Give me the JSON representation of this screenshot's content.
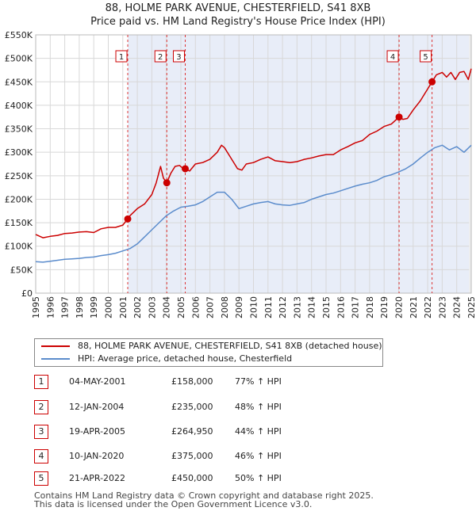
{
  "title_line1": "88, HOLME PARK AVENUE, CHESTERFIELD, S41 8XB",
  "title_line2": "Price paid vs. HM Land Registry's House Price Index (HPI)",
  "chart_data": {
    "type": "line",
    "xlim": [
      1995,
      2025
    ],
    "ylim": [
      0,
      550000
    ],
    "y_ticks": [
      0,
      50000,
      100000,
      150000,
      200000,
      250000,
      300000,
      350000,
      400000,
      450000,
      500000,
      550000
    ],
    "y_tick_labels": [
      "£0",
      "£50K",
      "£100K",
      "£150K",
      "£200K",
      "£250K",
      "£300K",
      "£350K",
      "£400K",
      "£450K",
      "£500K",
      "£550K"
    ],
    "x_ticks": [
      1995,
      1996,
      1997,
      1998,
      1999,
      2000,
      2001,
      2002,
      2003,
      2004,
      2005,
      2006,
      2007,
      2008,
      2009,
      2010,
      2011,
      2012,
      2013,
      2014,
      2015,
      2016,
      2017,
      2018,
      2019,
      2020,
      2021,
      2022,
      2023,
      2024,
      2025
    ],
    "grid": true,
    "series": [
      {
        "name": "88, HOLME PARK AVENUE, CHESTERFIELD, S41 8XB (detached house)",
        "color": "#cc0000",
        "x": [
          1995.0,
          1995.5,
          1996.0,
          1996.5,
          1997.0,
          1997.5,
          1998.0,
          1998.5,
          1999.0,
          1999.5,
          2000.0,
          2000.5,
          2001.0,
          2001.34,
          2001.5,
          2002.0,
          2002.5,
          2003.0,
          2003.3,
          2003.6,
          2003.8,
          2004.03,
          2004.3,
          2004.6,
          2004.9,
          2005.1,
          2005.3,
          2005.6,
          2006.0,
          2006.5,
          2007.0,
          2007.5,
          2007.8,
          2008.0,
          2008.3,
          2008.6,
          2008.9,
          2009.2,
          2009.5,
          2010.0,
          2010.5,
          2011.0,
          2011.5,
          2012.0,
          2012.5,
          2013.0,
          2013.5,
          2014.0,
          2014.5,
          2015.0,
          2015.5,
          2016.0,
          2016.5,
          2017.0,
          2017.5,
          2018.0,
          2018.5,
          2019.0,
          2019.5,
          2020.03,
          2020.3,
          2020.6,
          2021.0,
          2021.5,
          2021.9,
          2022.3,
          2022.6,
          2023.0,
          2023.3,
          2023.6,
          2023.9,
          2024.2,
          2024.5,
          2024.8,
          2025.0
        ],
        "values": [
          125000,
          118000,
          121000,
          123000,
          127000,
          128000,
          130000,
          131000,
          129000,
          137000,
          140000,
          140000,
          145000,
          158000,
          165000,
          180000,
          190000,
          210000,
          235000,
          270000,
          245000,
          235000,
          255000,
          270000,
          272000,
          267000,
          265000,
          260000,
          275000,
          278000,
          285000,
          300000,
          315000,
          310000,
          295000,
          280000,
          265000,
          262000,
          275000,
          278000,
          285000,
          290000,
          282000,
          280000,
          278000,
          280000,
          285000,
          288000,
          292000,
          295000,
          295000,
          305000,
          312000,
          320000,
          325000,
          338000,
          345000,
          355000,
          360000,
          375000,
          370000,
          372000,
          390000,
          410000,
          430000,
          450000,
          465000,
          470000,
          460000,
          470000,
          455000,
          470000,
          472000,
          455000,
          478000
        ]
      },
      {
        "name": "HPI: Average price, detached house, Chesterfield",
        "color": "#5b8ccc",
        "x": [
          1995.0,
          1995.5,
          1996.0,
          1996.5,
          1997.0,
          1997.5,
          1998.0,
          1998.5,
          1999.0,
          1999.5,
          2000.0,
          2000.5,
          2001.0,
          2001.5,
          2002.0,
          2002.5,
          2003.0,
          2003.5,
          2004.0,
          2004.5,
          2005.0,
          2005.5,
          2006.0,
          2006.5,
          2007.0,
          2007.5,
          2008.0,
          2008.5,
          2009.0,
          2009.5,
          2010.0,
          2010.5,
          2011.0,
          2011.5,
          2012.0,
          2012.5,
          2013.0,
          2013.5,
          2014.0,
          2014.5,
          2015.0,
          2015.5,
          2016.0,
          2016.5,
          2017.0,
          2017.5,
          2018.0,
          2018.5,
          2019.0,
          2019.5,
          2020.0,
          2020.5,
          2021.0,
          2021.5,
          2022.0,
          2022.5,
          2023.0,
          2023.5,
          2024.0,
          2024.5,
          2025.0
        ],
        "values": [
          67000,
          66000,
          68000,
          70000,
          72000,
          73000,
          74000,
          76000,
          77000,
          80000,
          82000,
          85000,
          90000,
          95000,
          105000,
          120000,
          135000,
          150000,
          165000,
          175000,
          183000,
          185000,
          188000,
          195000,
          205000,
          215000,
          215000,
          200000,
          180000,
          185000,
          190000,
          193000,
          195000,
          190000,
          188000,
          187000,
          190000,
          193000,
          200000,
          205000,
          210000,
          213000,
          218000,
          223000,
          228000,
          232000,
          235000,
          240000,
          248000,
          252000,
          258000,
          265000,
          275000,
          288000,
          300000,
          310000,
          315000,
          305000,
          312000,
          300000,
          315000
        ]
      }
    ],
    "transactions": [
      {
        "id": "1",
        "x": 2001.34,
        "price": 158000
      },
      {
        "id": "2",
        "x": 2004.03,
        "price": 235000
      },
      {
        "id": "3",
        "x": 2005.3,
        "price": 264950
      },
      {
        "id": "4",
        "x": 2020.03,
        "price": 375000
      },
      {
        "id": "5",
        "x": 2022.3,
        "price": 450000
      }
    ]
  },
  "table": [
    {
      "num": "1",
      "date": "04-MAY-2001",
      "price": "£158,000",
      "hpi": "77% ↑ HPI"
    },
    {
      "num": "2",
      "date": "12-JAN-2004",
      "price": "£235,000",
      "hpi": "48% ↑ HPI"
    },
    {
      "num": "3",
      "date": "19-APR-2005",
      "price": "£264,950",
      "hpi": "44% ↑ HPI"
    },
    {
      "num": "4",
      "date": "10-JAN-2020",
      "price": "£375,000",
      "hpi": "46% ↑ HPI"
    },
    {
      "num": "5",
      "date": "21-APR-2022",
      "price": "£450,000",
      "hpi": "50% ↑ HPI"
    }
  ],
  "legend": {
    "property_label": "88, HOLME PARK AVENUE, CHESTERFIELD, S41 8XB (detached house)",
    "hpi_label": "HPI: Average price, detached house, Chesterfield"
  },
  "footer": {
    "line1": "Contains HM Land Registry data © Crown copyright and database right 2025.",
    "line2": "This data is licensed under the Open Government Licence v3.0."
  }
}
